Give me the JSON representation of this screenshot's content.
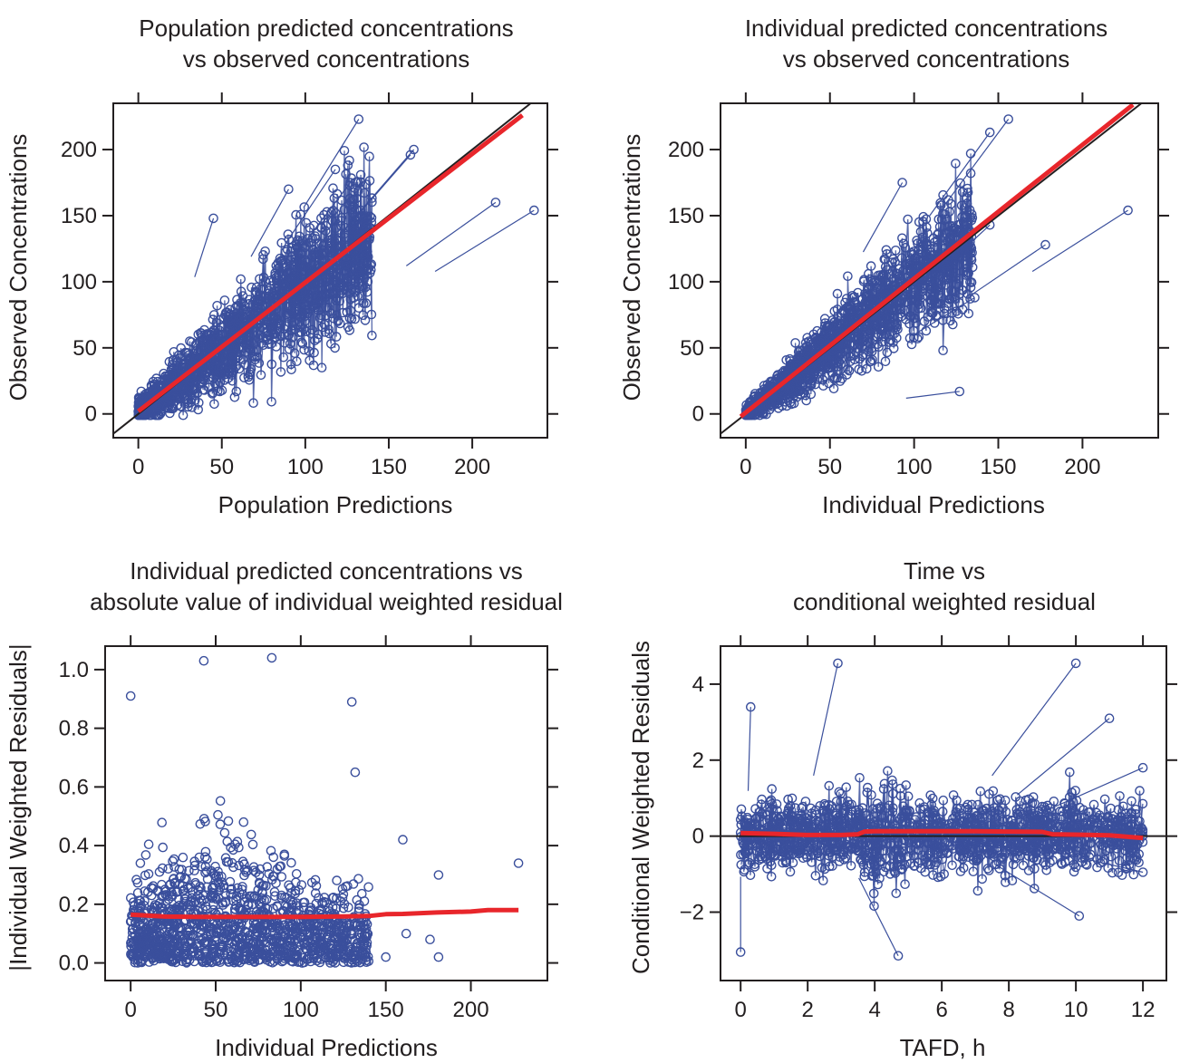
{
  "panels": [
    {
      "title_line1": "Population predicted concentrations",
      "title_line2": "vs observed concentrations",
      "xlabel": "Population Predictions",
      "ylabel": "Observed Concentrations"
    },
    {
      "title_line1": "Individual predicted concentrations",
      "title_line2": "vs observed concentrations",
      "xlabel": "Individual Predictions",
      "ylabel": "Observed Concentrations"
    },
    {
      "title_line1": "Individual predicted concentrations vs",
      "title_line2": "absolute value of individual weighted residual",
      "xlabel": "Individual Predictions",
      "ylabel": "|Individual Weighted Residuals|"
    },
    {
      "title_line1": "Time vs",
      "title_line2": "conditional weighted residual",
      "xlabel": "TAFD, h",
      "ylabel": "Conditional Weighted Residuals"
    }
  ],
  "colors": {
    "points": "#3a4f9c",
    "smooth": "#e8262b",
    "identity": "#231f20",
    "axis": "#231f20"
  },
  "chart_data": [
    {
      "type": "scatter",
      "title": "Population predicted concentrations vs observed concentrations",
      "xlabel": "Population Predictions",
      "ylabel": "Observed Concentrations",
      "xlim": [
        -15,
        245
      ],
      "ylim": [
        -18,
        235
      ],
      "xticks": [
        0,
        50,
        100,
        150,
        200
      ],
      "yticks": [
        0,
        50,
        100,
        150,
        200
      ],
      "identity_line": true,
      "points_connected": true,
      "smooth": {
        "x": [
          0,
          230
        ],
        "y": [
          2,
          226
        ]
      },
      "highlight_points": [
        {
          "x": 132,
          "y": 223
        },
        {
          "x": 165,
          "y": 200
        },
        {
          "x": 163,
          "y": 196
        },
        {
          "x": 237,
          "y": 154
        },
        {
          "x": 214,
          "y": 160
        },
        {
          "x": 45,
          "y": 148
        },
        {
          "x": 90,
          "y": 170
        },
        {
          "x": 127,
          "y": 175
        },
        {
          "x": 118,
          "y": 185
        }
      ]
    },
    {
      "type": "scatter",
      "title": "Individual predicted concentrations vs observed concentrations",
      "xlabel": "Individual Predictions",
      "ylabel": "Observed Concentrations",
      "xlim": [
        -15,
        245
      ],
      "ylim": [
        -18,
        235
      ],
      "xticks": [
        0,
        50,
        100,
        150,
        200
      ],
      "yticks": [
        0,
        50,
        100,
        150,
        200
      ],
      "identity_line": true,
      "points_connected": true,
      "smooth": {
        "x": [
          -3,
          230
        ],
        "y": [
          -2,
          234
        ]
      },
      "highlight_points": [
        {
          "x": 156,
          "y": 223
        },
        {
          "x": 145,
          "y": 213
        },
        {
          "x": 227,
          "y": 154
        },
        {
          "x": 178,
          "y": 128
        },
        {
          "x": 127,
          "y": 17
        },
        {
          "x": 145,
          "y": 143
        },
        {
          "x": 93,
          "y": 175
        },
        {
          "x": 136,
          "y": 88
        }
      ]
    },
    {
      "type": "scatter",
      "title": "Individual predicted concentrations vs absolute value of individual weighted residual",
      "xlabel": "Individual Predictions",
      "ylabel": "|Individual Weighted Residuals|",
      "xlim": [
        -15,
        245
      ],
      "ylim": [
        -0.06,
        1.08
      ],
      "xticks": [
        0,
        50,
        100,
        150,
        200
      ],
      "yticks": [
        0.0,
        0.2,
        0.4,
        0.6,
        0.8,
        1.0
      ],
      "points_connected": false,
      "smooth": {
        "x": [
          0,
          20,
          40,
          60,
          80,
          100,
          120,
          140,
          150,
          160,
          180,
          200,
          210,
          228
        ],
        "y": [
          0.165,
          0.158,
          0.157,
          0.157,
          0.157,
          0.157,
          0.158,
          0.16,
          0.166,
          0.167,
          0.172,
          0.175,
          0.18,
          0.18
        ]
      },
      "highlight_points": [
        {
          "x": 0,
          "y": 0.91
        },
        {
          "x": 43,
          "y": 1.03
        },
        {
          "x": 83,
          "y": 1.04
        },
        {
          "x": 130,
          "y": 0.89
        },
        {
          "x": 132,
          "y": 0.65
        },
        {
          "x": 228,
          "y": 0.34
        },
        {
          "x": 181,
          "y": 0.3
        },
        {
          "x": 160,
          "y": 0.42
        },
        {
          "x": 176,
          "y": 0.08
        },
        {
          "x": 150,
          "y": 0.02
        },
        {
          "x": 181,
          "y": 0.02
        },
        {
          "x": 162,
          "y": 0.1
        }
      ]
    },
    {
      "type": "scatter",
      "title": "Time vs conditional weighted residual",
      "xlabel": "TAFD, h",
      "ylabel": "Conditional Weighted Residuals",
      "xlim": [
        -0.6,
        12.7
      ],
      "ylim": [
        -3.8,
        5.0
      ],
      "xticks": [
        0,
        2,
        4,
        6,
        8,
        10,
        12
      ],
      "yticks": [
        -2,
        0,
        2,
        4
      ],
      "zero_line": true,
      "points_connected": true,
      "smooth": {
        "x": [
          0,
          1,
          2,
          3,
          3.5,
          3.7,
          4,
          5,
          6,
          7,
          8,
          9,
          9.3,
          10,
          11,
          12
        ],
        "y": [
          0.08,
          0.06,
          0.03,
          0.03,
          0.05,
          0.12,
          0.13,
          0.13,
          0.13,
          0.13,
          0.12,
          0.11,
          0.05,
          0.04,
          0.02,
          -0.05
        ]
      },
      "highlight_points": [
        {
          "x": 2.9,
          "y": 4.55
        },
        {
          "x": 10.0,
          "y": 4.55
        },
        {
          "x": 0.3,
          "y": 3.4
        },
        {
          "x": 11.0,
          "y": 3.1
        },
        {
          "x": 12.0,
          "y": 1.8
        },
        {
          "x": 4.7,
          "y": -3.15
        },
        {
          "x": 0,
          "y": -3.05
        },
        {
          "x": 10.1,
          "y": -2.1
        },
        {
          "x": 12.0,
          "y": -0.95
        }
      ]
    }
  ]
}
